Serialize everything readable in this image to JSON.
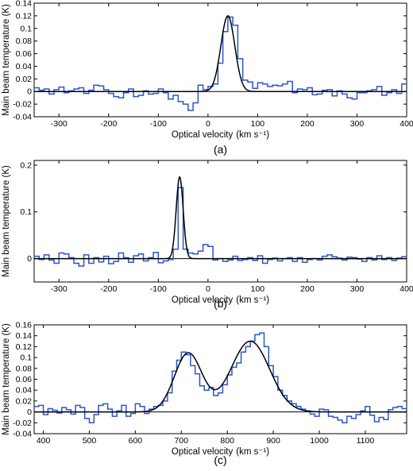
{
  "colors": {
    "observed": "#2b55c9",
    "fit": "#000000"
  },
  "chart_data": [
    {
      "type": "line",
      "caption": "(a)",
      "xlabel": "Optical velocity",
      "xunit": "(km s⁻¹)",
      "ylabel": "Main beam temperature (K)",
      "xlim": [
        -350,
        400
      ],
      "ylim": [
        -0.04,
        0.14
      ],
      "xticks": [
        -300,
        -200,
        -100,
        0,
        100,
        200,
        300,
        400
      ],
      "yticks": [
        -0.04,
        -0.02,
        0,
        0.02,
        0.04,
        0.06,
        0.08,
        0.1,
        0.12,
        0.14
      ],
      "ytick_labels": [
        "-0.04",
        "-0.02",
        "0",
        "0.02",
        "0.04",
        "0.06",
        "0.08",
        "0.1",
        "0.12",
        "0.14"
      ],
      "series": [
        {
          "kind": "histogram",
          "x": [
            -350,
            -340,
            -330,
            -320,
            -310,
            -300,
            -290,
            -280,
            -270,
            -260,
            -250,
            -240,
            -230,
            -220,
            -210,
            -200,
            -190,
            -180,
            -170,
            -160,
            -150,
            -140,
            -130,
            -120,
            -110,
            -100,
            -90,
            -80,
            -70,
            -60,
            -50,
            -40,
            -30,
            -20,
            -10,
            0,
            10,
            20,
            30,
            40,
            50,
            60,
            70,
            80,
            90,
            100,
            110,
            120,
            130,
            140,
            150,
            160,
            170,
            180,
            190,
            200,
            210,
            220,
            230,
            240,
            250,
            260,
            270,
            280,
            290,
            300,
            310,
            320,
            330,
            340,
            350,
            360,
            370,
            380,
            390
          ],
          "y": [
            0.006,
            0.002,
            0.004,
            -0.004,
            0.003,
            0.007,
            -0.002,
            0.001,
            0.004,
            0.006,
            -0.003,
            0.002,
            0.01,
            0.009,
            0.003,
            -0.003,
            -0.008,
            -0.01,
            -0.002,
            0.004,
            -0.008,
            -0.006,
            0.001,
            -0.004,
            -0.003,
            0.004,
            -0.002,
            -0.012,
            -0.006,
            -0.016,
            -0.02,
            -0.03,
            -0.018,
            0.01,
            0.003,
            0.008,
            0.012,
            0.045,
            0.095,
            0.118,
            0.105,
            0.052,
            0.018,
            0.015,
            0.005,
            0.014,
            0.012,
            0.008,
            0.01,
            0.009,
            0.012,
            0.016,
            -0.002,
            0.004,
            0.003,
            0.006,
            -0.005,
            -0.004,
            0.002,
            0.003,
            -0.007,
            0.001,
            -0.004,
            -0.01,
            -0.012,
            -0.002,
            -0.002,
            0.001,
            0.003,
            0.008,
            -0.006,
            -0.002,
            0.003,
            -0.003,
            0.012
          ]
        },
        {
          "kind": "fit",
          "model": "gaussian",
          "components": [
            {
              "amp": 0.12,
              "center": 40,
              "sigma": 14
            }
          ]
        }
      ]
    },
    {
      "type": "line",
      "caption": "(b)",
      "xlabel": "Optical velocity",
      "xunit": "(km s⁻¹)",
      "ylabel": "Main beam temperature (K)",
      "xlim": [
        -350,
        400
      ],
      "ylim": [
        -0.05,
        0.21
      ],
      "xticks": [
        -300,
        -200,
        -100,
        0,
        100,
        200,
        300,
        400
      ],
      "yticks": [
        0,
        0.1,
        0.2
      ],
      "ytick_labels": [
        "0",
        "0.1",
        "0.2"
      ],
      "series": [
        {
          "kind": "histogram",
          "x": [
            -350,
            -340,
            -330,
            -320,
            -310,
            -300,
            -290,
            -280,
            -270,
            -260,
            -250,
            -240,
            -230,
            -220,
            -210,
            -200,
            -190,
            -180,
            -170,
            -160,
            -150,
            -140,
            -130,
            -120,
            -110,
            -100,
            -90,
            -80,
            -70,
            -60,
            -50,
            -40,
            -30,
            -20,
            -10,
            0,
            10,
            20,
            30,
            40,
            50,
            60,
            70,
            80,
            90,
            100,
            110,
            120,
            130,
            140,
            150,
            160,
            170,
            180,
            190,
            200,
            210,
            220,
            230,
            240,
            250,
            260,
            270,
            280,
            290,
            300,
            310,
            320,
            330,
            340,
            350,
            360,
            370,
            380,
            390
          ],
          "y": [
            0.005,
            -0.002,
            0.008,
            -0.003,
            -0.01,
            0.012,
            0.01,
            0.002,
            -0.01,
            -0.016,
            0.008,
            -0.01,
            0.002,
            -0.007,
            0.005,
            -0.011,
            -0.006,
            0.012,
            0.002,
            -0.008,
            0.006,
            0.01,
            -0.005,
            0.002,
            0.013,
            -0.009,
            -0.005,
            -0.002,
            0.02,
            0.152,
            0.02,
            0.012,
            0.01,
            0.016,
            0.03,
            0.026,
            -0.003,
            0,
            -0.006,
            -0.003,
            0.005,
            -0.004,
            -0.002,
            0.002,
            -0.004,
            0.006,
            -0.01,
            -0.002,
            0.001,
            -0.005,
            0,
            0.002,
            -0.006,
            0.002,
            -0.008,
            -0.002,
            0,
            -0.003,
            0.005,
            0.008,
            0.004,
            0.001,
            -0.003,
            0.003,
            0.002,
            -0.001,
            -0.006,
            0.002,
            -0.003,
            0.006,
            -0.002,
            0.002,
            -0.004,
            0.001,
            0.004
          ]
        },
        {
          "kind": "fit",
          "model": "gaussian",
          "components": [
            {
              "amp": 0.175,
              "center": -57,
              "sigma": 7
            }
          ]
        }
      ]
    },
    {
      "type": "line",
      "caption": "(c)",
      "xlabel": "Optical velocity",
      "xunit": "(km s⁻¹)",
      "ylabel": "Main beam temperature (K)",
      "xlim": [
        380,
        1190
      ],
      "ylim": [
        -0.04,
        0.16
      ],
      "xticks": [
        400,
        500,
        600,
        700,
        800,
        900,
        1000,
        1100
      ],
      "yticks": [
        -0.04,
        -0.02,
        0,
        0.02,
        0.04,
        0.06,
        0.08,
        0.1,
        0.12,
        0.14,
        0.16
      ],
      "ytick_labels": [
        "-0.04",
        "-0.02",
        "0",
        "0.02",
        "0.04",
        "0.06",
        "0.08",
        "0.1",
        "0.12",
        "0.14",
        "0.16"
      ],
      "series": [
        {
          "kind": "histogram",
          "x": [
            380,
            390,
            400,
            410,
            420,
            430,
            440,
            450,
            460,
            470,
            480,
            490,
            500,
            510,
            520,
            530,
            540,
            550,
            560,
            570,
            580,
            590,
            600,
            610,
            620,
            630,
            640,
            650,
            660,
            670,
            680,
            690,
            700,
            710,
            720,
            730,
            740,
            750,
            760,
            770,
            780,
            790,
            800,
            810,
            820,
            830,
            840,
            850,
            860,
            870,
            880,
            890,
            900,
            910,
            920,
            930,
            940,
            950,
            960,
            970,
            980,
            990,
            1000,
            1010,
            1020,
            1030,
            1040,
            1050,
            1060,
            1070,
            1080,
            1090,
            1100,
            1110,
            1120,
            1130,
            1140,
            1150,
            1160,
            1170,
            1180
          ],
          "y": [
            0.01,
            0.012,
            -0.005,
            0.006,
            0.003,
            -0.002,
            0.008,
            0.004,
            -0.004,
            0.012,
            0.008,
            -0.012,
            -0.02,
            -0.005,
            0.012,
            0.015,
            0.005,
            -0.008,
            0.002,
            0.012,
            -0.008,
            -0.003,
            0.015,
            0.01,
            -0.003,
            0.005,
            0.01,
            0.012,
            0.02,
            0.035,
            0.075,
            0.095,
            0.11,
            0.105,
            0.085,
            0.07,
            0.048,
            0.04,
            0.045,
            0.03,
            0.035,
            0.05,
            0.068,
            0.082,
            0.09,
            0.11,
            0.12,
            0.13,
            0.142,
            0.145,
            0.12,
            0.085,
            0.065,
            0.04,
            0.03,
            0.02,
            0.015,
            0.01,
            0.005,
            0.002,
            -0.004,
            -0.008,
            0.005,
            0.004,
            -0.008,
            -0.01,
            -0.015,
            -0.02,
            -0.008,
            -0.012,
            -0.005,
            0.002,
            0.01,
            -0.006,
            -0.018,
            -0.01,
            -0.014,
            0.004,
            0.008,
            0.01,
            0.006
          ]
        },
        {
          "kind": "fit",
          "model": "gaussian",
          "components": [
            {
              "amp": 0.108,
              "center": 715,
              "sigma": 30
            },
            {
              "amp": 0.13,
              "center": 850,
              "sigma": 42
            }
          ]
        }
      ]
    }
  ]
}
